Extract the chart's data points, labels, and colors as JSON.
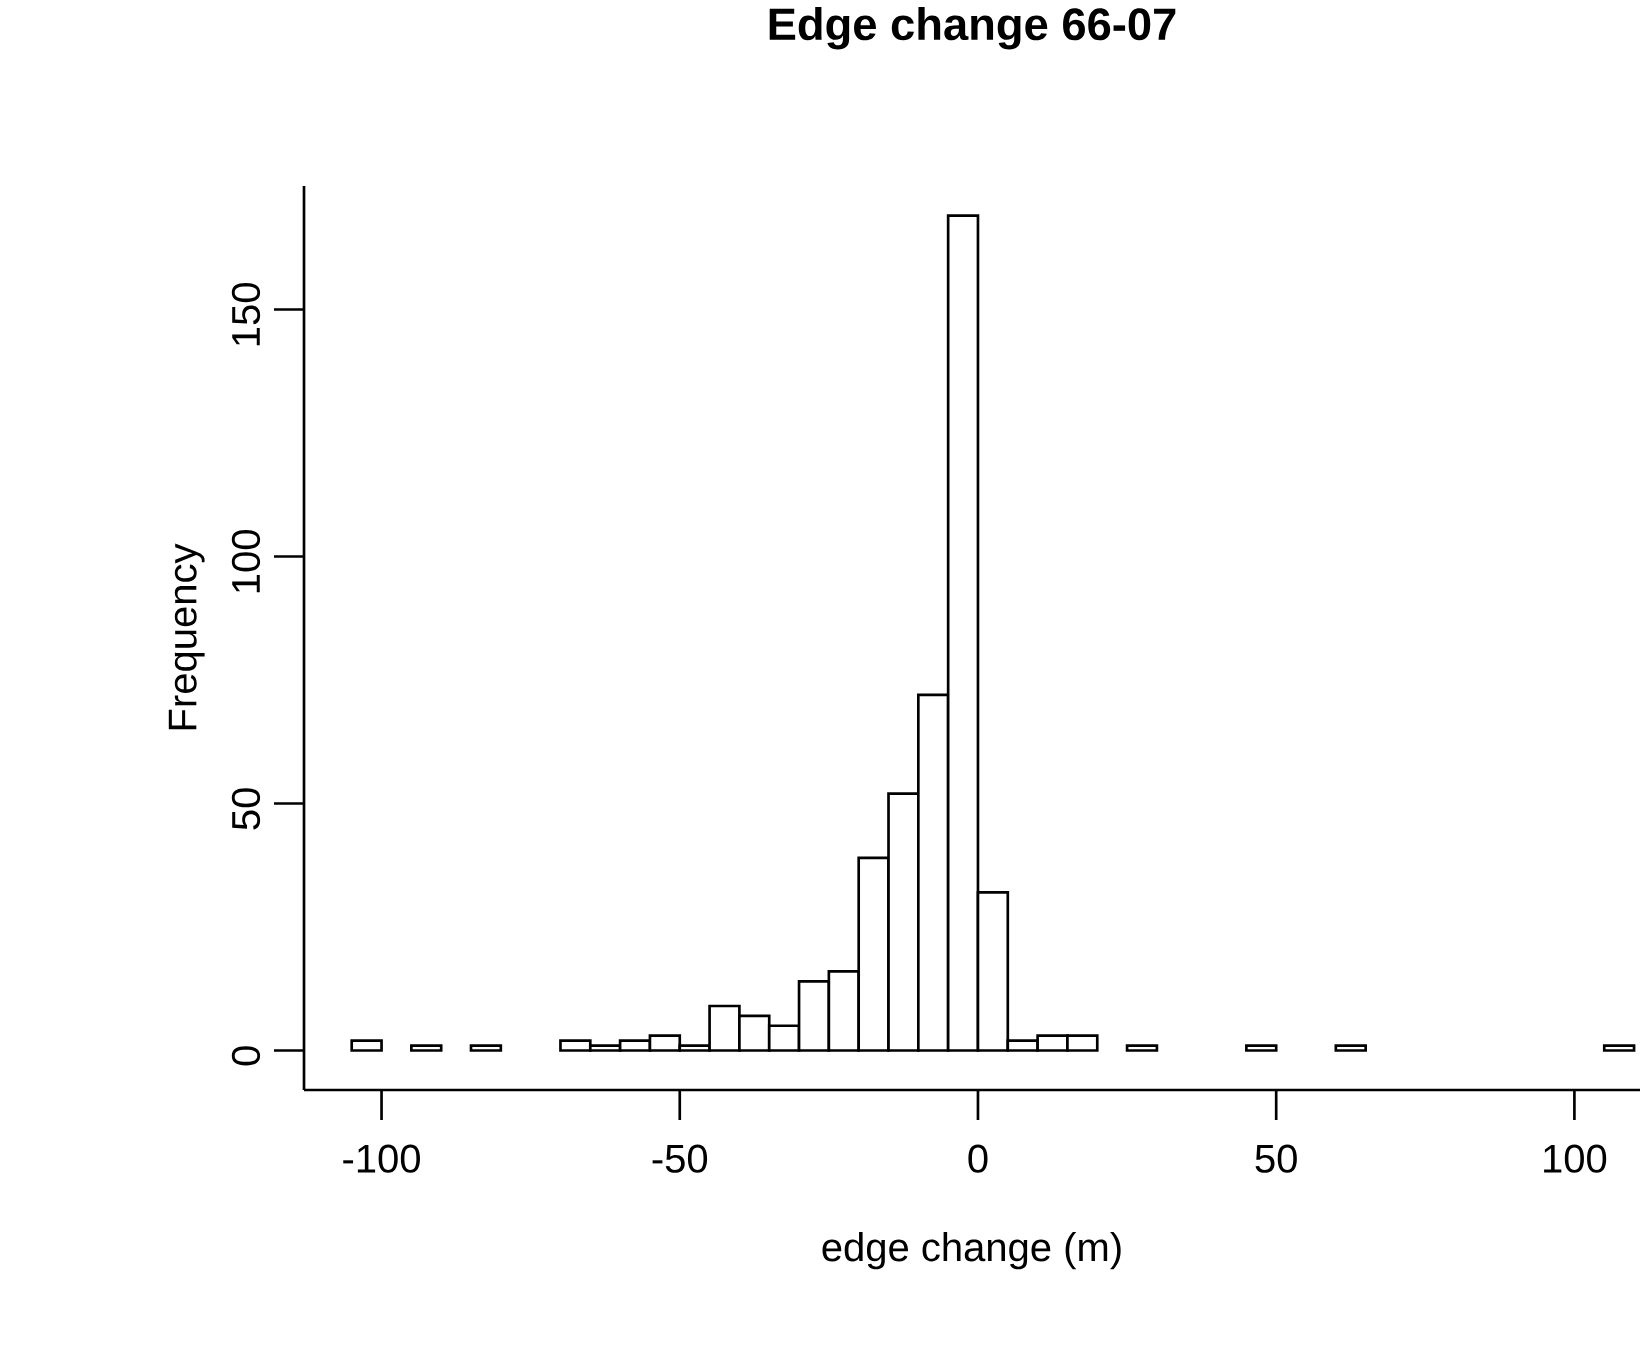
{
  "chart_data": {
    "type": "histogram",
    "title": "Edge change 66-07",
    "xlabel": "edge change (m)",
    "ylabel": "Frequency",
    "bins": [
      -105,
      -100,
      -95,
      -90,
      -85,
      -80,
      -75,
      -70,
      -65,
      -60,
      -55,
      -50,
      -45,
      -40,
      -35,
      -30,
      -25,
      -20,
      -15,
      -10,
      -5,
      0,
      5,
      10,
      15,
      20,
      25,
      30,
      35,
      40,
      45,
      50,
      55,
      60,
      65,
      70,
      75,
      80,
      85,
      90,
      95,
      100,
      105,
      110
    ],
    "values": [
      2,
      0,
      1,
      0,
      1,
      0,
      0,
      2,
      1,
      2,
      3,
      1,
      9,
      7,
      5,
      14,
      16,
      39,
      52,
      72,
      169,
      32,
      2,
      3,
      3,
      0,
      1,
      0,
      0,
      0,
      1,
      0,
      0,
      1,
      0,
      0,
      0,
      0,
      0,
      0,
      0,
      0,
      1
    ],
    "color": "#ffffff",
    "xlim": [
      -113,
      111
    ],
    "ylim": [
      -8,
      175
    ],
    "xticks": [
      -100,
      -50,
      0,
      50,
      100
    ],
    "yticks": [
      0,
      50,
      100,
      150
    ]
  }
}
